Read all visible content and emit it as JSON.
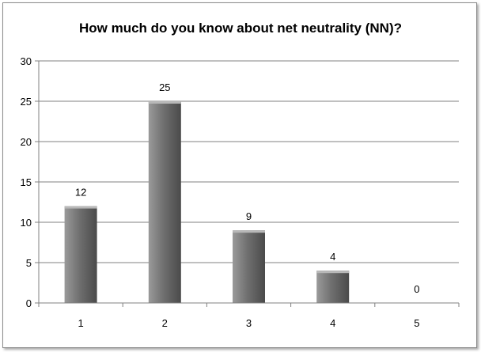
{
  "chart_data": {
    "type": "bar",
    "title": "How  much do you know about net neutrality (NN)?",
    "categories": [
      "1",
      "2",
      "3",
      "4",
      "5"
    ],
    "values": [
      12,
      25,
      9,
      4,
      0
    ],
    "data_labels": [
      "12",
      "25",
      "9",
      "4",
      "0"
    ],
    "xlabel": "",
    "ylabel": "",
    "ylim": [
      0,
      30
    ],
    "yticks": [
      0,
      5,
      10,
      15,
      20,
      25,
      30
    ],
    "ytick_labels": [
      "0",
      "5",
      "10",
      "15",
      "20",
      "25",
      "30"
    ],
    "grid": true,
    "legend": "none",
    "colors": {
      "bar_light": "#9a9a9a",
      "bar_dark": "#4a4a4a",
      "grid": "#808080"
    }
  }
}
